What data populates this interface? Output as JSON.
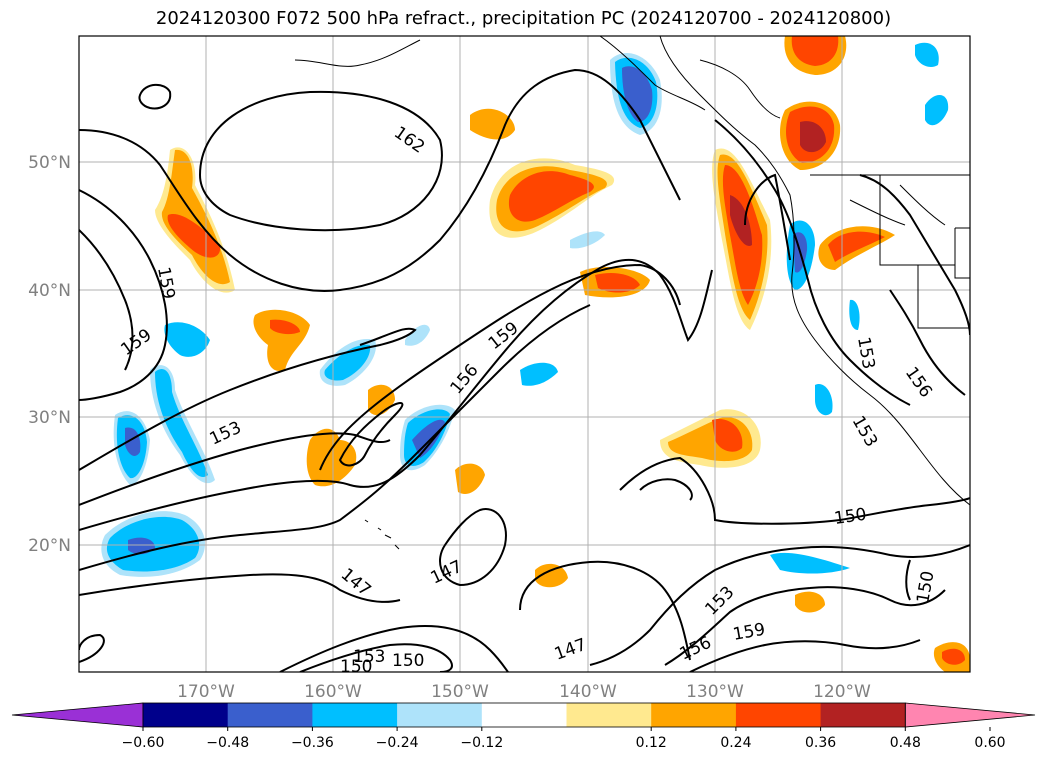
{
  "title": "2024120300 F072 500 hPa refract., precipitation PC (2024120700 - 2024120800)",
  "map": {
    "lon_ticks": [
      "170°W",
      "160°W",
      "150°W",
      "140°W",
      "130°W",
      "120°W"
    ],
    "lat_ticks": [
      "50°N",
      "40°N",
      "30°N",
      "20°N"
    ],
    "contour_labels": [
      "162",
      "159",
      "159",
      "159",
      "156",
      "153",
      "153",
      "153",
      "156",
      "150",
      "150",
      "150",
      "147",
      "147",
      "147",
      "153",
      "153",
      "156",
      "159",
      "150"
    ]
  },
  "colorbar": {
    "colors": [
      "#9a30d6",
      "#00008b",
      "#3a5fcd",
      "#00bfff",
      "#aee3fa",
      "#ffffff",
      "#ffe98f",
      "#ffa500",
      "#ff4500",
      "#b22222",
      "#ff85b0"
    ],
    "labels": [
      "−0.60",
      "−0.48",
      "−0.36",
      "−0.24",
      "−0.12",
      "0.12",
      "0.24",
      "0.36",
      "0.48",
      "0.60"
    ]
  }
}
